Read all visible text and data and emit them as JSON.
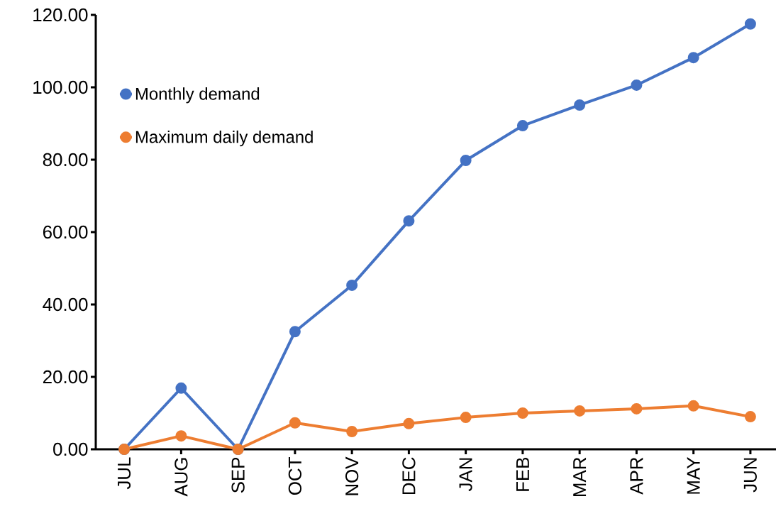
{
  "chart_data": {
    "type": "line",
    "categories": [
      "JUL",
      "AUG",
      "SEP",
      "OCT",
      "NOV",
      "DEC",
      "JAN",
      "FEB",
      "MAR",
      "APR",
      "MAY",
      "JUN"
    ],
    "series": [
      {
        "name": "Monthly demand",
        "color": "#4472c4",
        "values": [
          0,
          16.9,
          0,
          32.5,
          45.3,
          63.1,
          79.8,
          89.4,
          95.1,
          100.6,
          108.2,
          117.5
        ]
      },
      {
        "name": "Maximum daily demand",
        "color": "#ed7d31",
        "values": [
          0,
          3.7,
          0,
          7.3,
          4.9,
          7.1,
          8.8,
          10.0,
          10.6,
          11.2,
          12.0,
          9.0
        ]
      }
    ],
    "ylim": [
      0,
      120
    ],
    "yticks": [
      {
        "value": 0,
        "label": "0.00"
      },
      {
        "value": 20,
        "label": "20.00"
      },
      {
        "value": 40,
        "label": "40.00"
      },
      {
        "value": 60,
        "label": "60.00"
      },
      {
        "value": 80,
        "label": "80.00"
      },
      {
        "value": 100,
        "label": "100.00"
      },
      {
        "value": 120,
        "label": "120.00"
      }
    ],
    "grid": false,
    "legend": "top left",
    "marker": "circle",
    "line_style": "solid"
  }
}
